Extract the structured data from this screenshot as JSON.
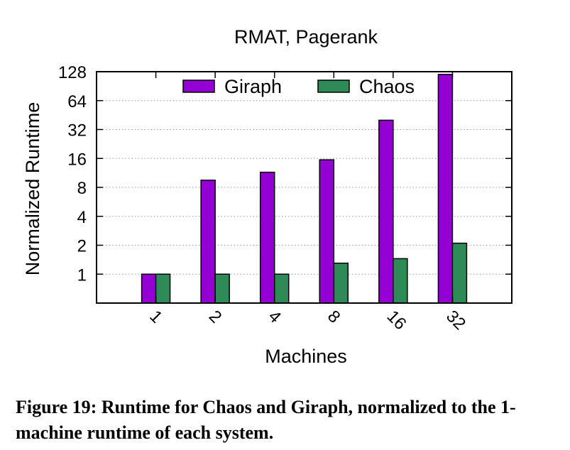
{
  "chart_data": {
    "type": "bar",
    "title": "RMAT, Pagerank",
    "xlabel": "Machines",
    "ylabel": "Normalized Runtime",
    "y_scale": "log2",
    "ylim": [
      0.5,
      128
    ],
    "y_ticks": [
      "1",
      "2",
      "4",
      "8",
      "16",
      "32",
      "64",
      "128"
    ],
    "y_tick_values": [
      1,
      2,
      4,
      8,
      16,
      32,
      64,
      128
    ],
    "categories": [
      "1",
      "2",
      "4",
      "8",
      "16",
      "32"
    ],
    "series": [
      {
        "name": "Giraph",
        "color": "#9400d3",
        "values": [
          1,
          9.5,
          11.5,
          15.5,
          40,
          120
        ]
      },
      {
        "name": "Chaos",
        "color": "#2e8b57",
        "values": [
          1,
          1,
          1,
          1.3,
          1.45,
          2.1
        ]
      }
    ],
    "legend_position": "top",
    "grid": "horizontal dotted",
    "x_tick_rotation": "diagonal"
  },
  "caption": {
    "label": "Figure 19:",
    "text": "Runtime for Chaos and Giraph, normalized to the 1-machine runtime of each system."
  }
}
